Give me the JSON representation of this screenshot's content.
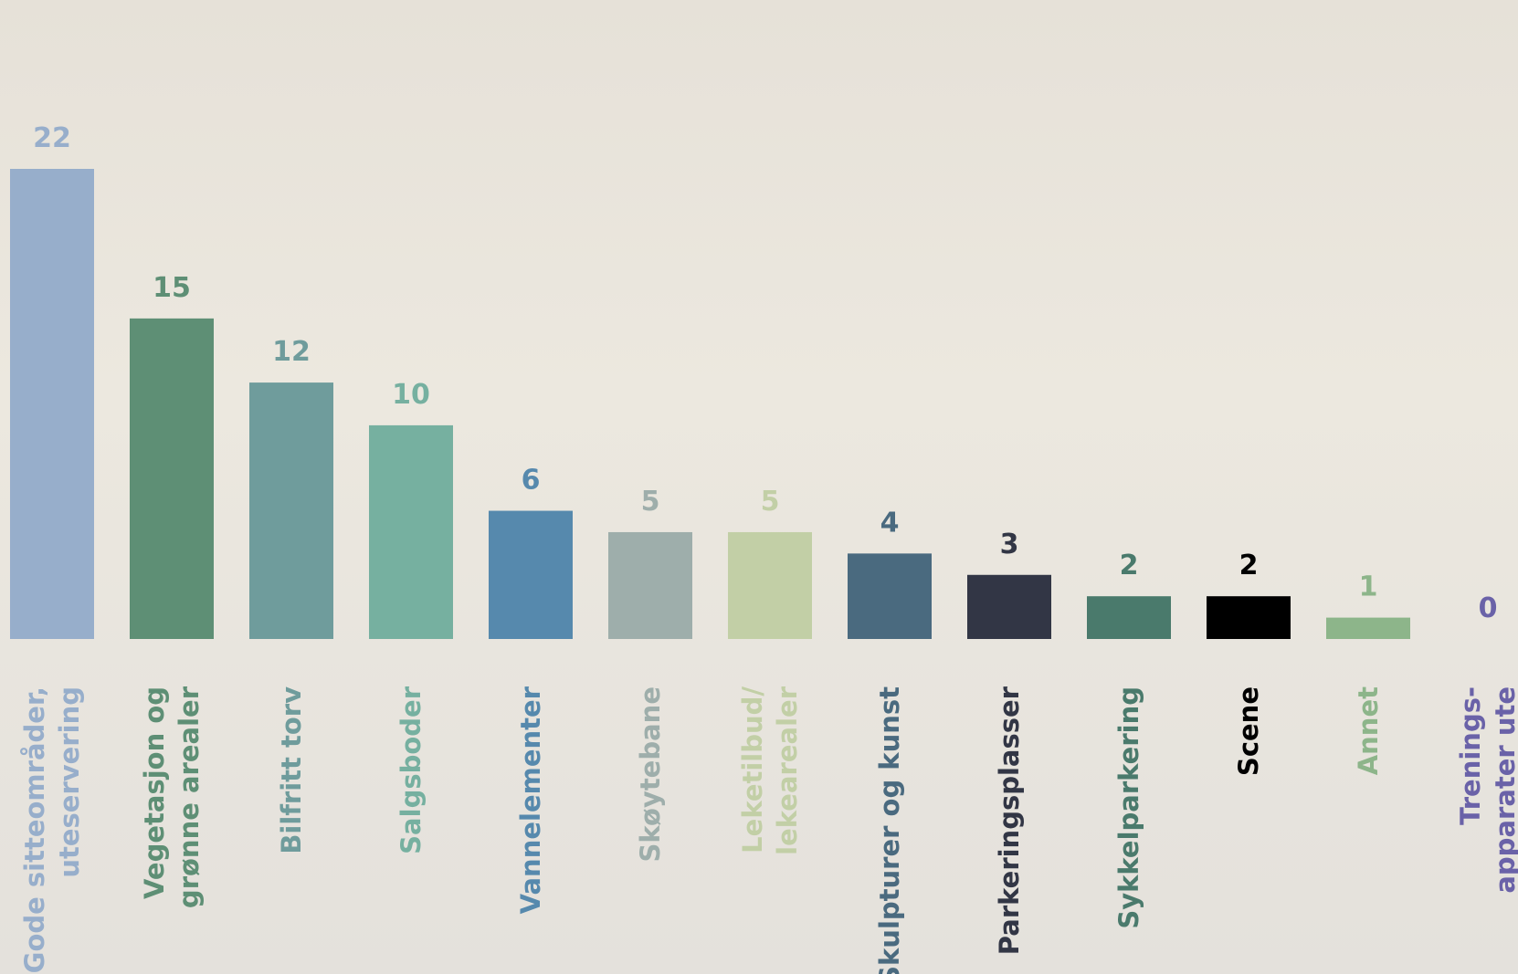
{
  "chart_data": {
    "type": "bar",
    "categories": [
      [
        "Gode sitteområder,",
        "uteservering"
      ],
      [
        "Vegetasjon og",
        "grønne arealer"
      ],
      [
        "Bilfritt torv"
      ],
      [
        "Salgsboder"
      ],
      [
        "Vannelementer"
      ],
      [
        "Skøytebane"
      ],
      [
        "Leketilbud/",
        "lekearealer"
      ],
      [
        "Skulpturer og kunst"
      ],
      [
        "Parkeringsplasser"
      ],
      [
        "Sykkelparkering"
      ],
      [
        "Scene"
      ],
      [
        "Annet"
      ],
      [
        "Trenings-",
        "apparater ute"
      ]
    ],
    "values": [
      22,
      15,
      12,
      10,
      6,
      5,
      5,
      4,
      3,
      2,
      2,
      1,
      0
    ],
    "colors": [
      "#97aecb",
      "#5e8f75",
      "#6f9c9c",
      "#76b0a0",
      "#5689ad",
      "#9eaeab",
      "#c2cfa6",
      "#4a6a7f",
      "#323645",
      "#4a7a6c",
      "#000000",
      "#8db58a",
      "#6a62a8"
    ]
  }
}
